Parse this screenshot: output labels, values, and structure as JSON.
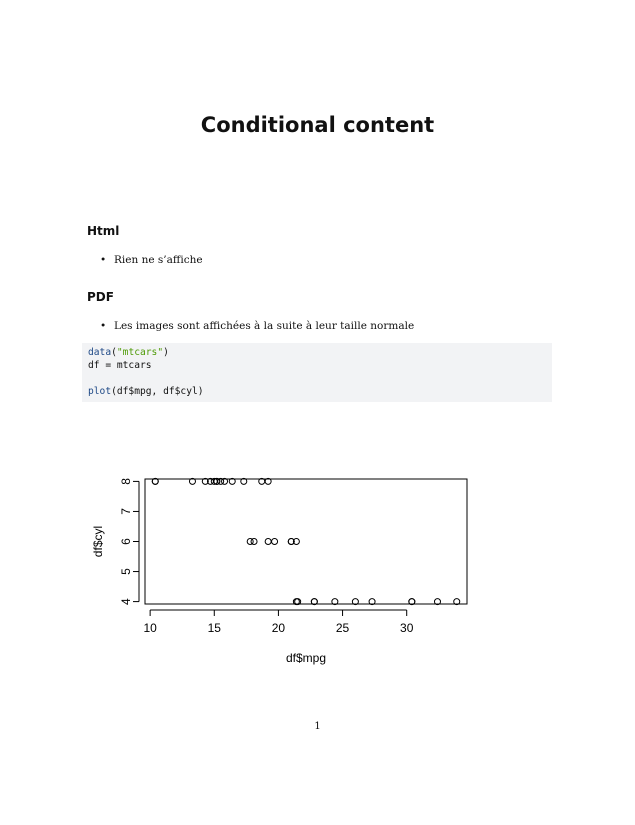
{
  "title": "Conditional content",
  "sections": [
    {
      "heading": "Html",
      "bullets": [
        "Rien ne s’affiche"
      ]
    },
    {
      "heading": "PDF",
      "bullets": [
        "Les images sont affichées à la suite à leur taille normale"
      ]
    }
  ],
  "code": {
    "lines": [
      [
        {
          "t": "data",
          "c": "fn"
        },
        {
          "t": "(",
          "c": ""
        },
        {
          "t": "\"mtcars\"",
          "c": "str"
        },
        {
          "t": ")",
          "c": ""
        }
      ],
      [
        {
          "t": "df = mtcars",
          "c": ""
        }
      ],
      [],
      [
        {
          "t": "plot",
          "c": "fn"
        },
        {
          "t": "(df$mpg, df$cyl)",
          "c": ""
        }
      ]
    ]
  },
  "chart_data": {
    "type": "scatter",
    "xlabel": "df$mpg",
    "ylabel": "df$cyl",
    "xticks": [
      10,
      15,
      20,
      25,
      30
    ],
    "yticks": [
      4,
      5,
      6,
      7,
      8
    ],
    "xlim": [
      9.6,
      34.7
    ],
    "ylim": [
      3.92,
      8.08
    ],
    "points": [
      [
        21.0,
        6
      ],
      [
        21.0,
        6
      ],
      [
        22.8,
        4
      ],
      [
        21.4,
        6
      ],
      [
        18.7,
        8
      ],
      [
        18.1,
        6
      ],
      [
        14.3,
        8
      ],
      [
        24.4,
        4
      ],
      [
        22.8,
        4
      ],
      [
        19.2,
        6
      ],
      [
        17.8,
        6
      ],
      [
        16.4,
        8
      ],
      [
        17.3,
        8
      ],
      [
        15.2,
        8
      ],
      [
        10.4,
        8
      ],
      [
        10.4,
        8
      ],
      [
        14.7,
        8
      ],
      [
        32.4,
        4
      ],
      [
        30.4,
        4
      ],
      [
        33.9,
        4
      ],
      [
        21.5,
        4
      ],
      [
        15.5,
        8
      ],
      [
        15.2,
        8
      ],
      [
        13.3,
        8
      ],
      [
        19.2,
        8
      ],
      [
        27.3,
        4
      ],
      [
        26.0,
        4
      ],
      [
        30.4,
        4
      ],
      [
        15.8,
        8
      ],
      [
        19.7,
        6
      ],
      [
        15.0,
        8
      ],
      [
        21.4,
        4
      ]
    ]
  },
  "page_number": "1"
}
